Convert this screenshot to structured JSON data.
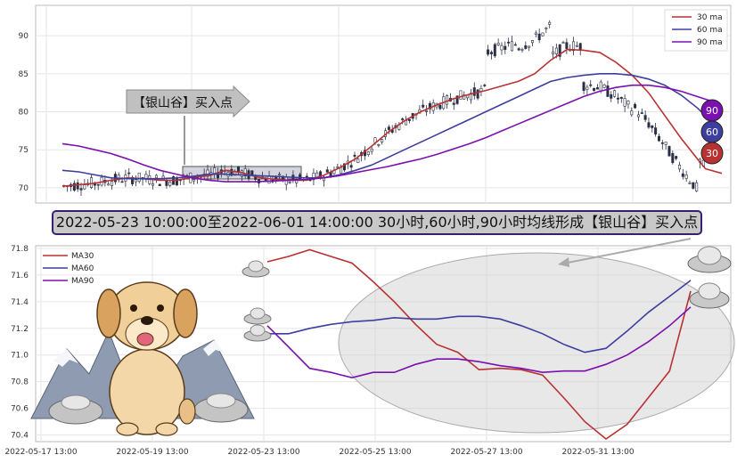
{
  "colors": {
    "ma30": "#b83232",
    "ma60": "#3e3e9e",
    "ma90": "#7a10b0",
    "candle": "#2a2f45",
    "grid": "#e6e6e6",
    "box_fill": "#d4d4dc"
  },
  "banner_text": "2022-05-23 10:00:00至2022-06-01 14:00:00 30小时,60小时,90小时均线形成【银山谷】买入点",
  "chart_data": [
    {
      "type": "line",
      "panel": "top",
      "ylim": [
        68,
        94
      ],
      "yticks": [
        70,
        75,
        80,
        85,
        90
      ],
      "grid": true,
      "legend_position": "top-right",
      "legend": [
        "30 ma",
        "60 ma",
        "90 ma"
      ],
      "annotation": "【银山谷】买入点",
      "end_badges": [
        "90",
        "60",
        "30"
      ],
      "series": [
        {
          "name": "30 ma",
          "x": [
            0,
            20,
            40,
            60,
            80,
            100,
            120,
            140,
            160,
            180,
            200,
            220,
            240,
            260,
            280,
            300,
            320,
            340,
            360,
            380,
            400,
            420,
            440,
            460,
            480,
            500,
            520,
            540,
            560,
            580,
            600,
            620,
            640,
            660,
            680,
            700,
            720,
            740,
            760,
            780,
            790,
            810
          ],
          "y": [
            70.2,
            70.4,
            70.6,
            71.0,
            71.3,
            71.2,
            71.0,
            71.0,
            71.4,
            71.6,
            72.3,
            72.0,
            71.4,
            71.1,
            71.0,
            71.0,
            71.6,
            72.6,
            73.8,
            75.5,
            77.3,
            78.8,
            80.0,
            80.9,
            81.7,
            82.3,
            82.8,
            83.4,
            84.0,
            85.0,
            86.8,
            88.2,
            88.1,
            87.8,
            86.5,
            84.8,
            82.5,
            79.5,
            76.5,
            73.8,
            72.5,
            71.9
          ]
        },
        {
          "name": "60 ma",
          "x": [
            0,
            20,
            40,
            60,
            80,
            100,
            120,
            140,
            160,
            180,
            200,
            220,
            240,
            260,
            280,
            300,
            320,
            340,
            360,
            380,
            400,
            420,
            440,
            460,
            480,
            500,
            520,
            540,
            560,
            580,
            600,
            620,
            640,
            660,
            680,
            700,
            720,
            740,
            760,
            780,
            800
          ],
          "y": [
            72.3,
            72.1,
            71.7,
            71.3,
            71.2,
            71.2,
            71.2,
            71.3,
            71.5,
            71.8,
            71.8,
            71.7,
            71.6,
            71.5,
            71.4,
            71.3,
            71.3,
            71.7,
            72.3,
            73.0,
            74.0,
            75.0,
            76.0,
            77.0,
            78.0,
            79.0,
            80.0,
            81.0,
            82.0,
            83.0,
            84.0,
            84.5,
            84.8,
            85.0,
            85.0,
            84.8,
            84.3,
            83.5,
            82.2,
            80.5,
            78.4
          ]
        },
        {
          "name": "90 ma",
          "x": [
            0,
            20,
            40,
            60,
            80,
            100,
            120,
            140,
            160,
            180,
            200,
            220,
            240,
            260,
            280,
            300,
            320,
            340,
            360,
            380,
            400,
            420,
            440,
            460,
            480,
            500,
            520,
            540,
            560,
            580,
            600,
            620,
            640,
            660,
            680,
            700,
            720,
            740,
            760,
            780,
            800
          ],
          "y": [
            75.8,
            75.5,
            75.0,
            74.5,
            73.8,
            73.0,
            72.3,
            71.8,
            71.3,
            71.0,
            70.8,
            70.8,
            70.8,
            70.9,
            71.0,
            71.1,
            71.3,
            71.6,
            72.0,
            72.4,
            72.8,
            73.3,
            73.8,
            74.4,
            75.1,
            75.8,
            76.6,
            77.5,
            78.4,
            79.3,
            80.2,
            81.1,
            82.0,
            82.7,
            83.2,
            83.5,
            83.5,
            83.2,
            82.7,
            82.0,
            81.3
          ]
        }
      ]
    },
    {
      "type": "line",
      "panel": "bottom",
      "ylim": [
        70.35,
        71.82
      ],
      "yticks": [
        70.4,
        70.6,
        70.8,
        71.0,
        71.2,
        71.4,
        71.6,
        71.8
      ],
      "xtick_labels": [
        "2022-05-17 13:00",
        "2022-05-19 13:00",
        "2022-05-23 13:00",
        "2022-05-25 13:00",
        "2022-05-27 13:00",
        "2022-05-31 13:00"
      ],
      "grid": true,
      "legend_position": "top-left",
      "legend": [
        "MA30",
        "MA60",
        "MA90"
      ],
      "series": [
        {
          "name": "MA30",
          "x": [
            0,
            1,
            2,
            3,
            4,
            5,
            6,
            7,
            8,
            9,
            10,
            11,
            12,
            13,
            14,
            15,
            16,
            17,
            18,
            19,
            20
          ],
          "y": [
            71.7,
            71.74,
            71.79,
            71.74,
            71.69,
            71.55,
            71.4,
            71.23,
            71.08,
            71.02,
            70.89,
            70.9,
            70.89,
            70.85,
            70.68,
            70.5,
            70.37,
            70.48,
            70.68,
            70.88,
            71.48
          ]
        },
        {
          "name": "MA60",
          "x": [
            0,
            1,
            2,
            3,
            4,
            5,
            6,
            7,
            8,
            9,
            10,
            11,
            12,
            13,
            14,
            15,
            16,
            17,
            18,
            19,
            20
          ],
          "y": [
            71.16,
            71.16,
            71.2,
            71.23,
            71.25,
            71.26,
            71.28,
            71.27,
            71.27,
            71.29,
            71.29,
            71.27,
            71.22,
            71.16,
            71.08,
            71.02,
            71.05,
            71.18,
            71.32,
            71.44,
            71.56
          ]
        },
        {
          "name": "MA90",
          "x": [
            0,
            1,
            2,
            3,
            4,
            5,
            6,
            7,
            8,
            9,
            10,
            11,
            12,
            13,
            14,
            15,
            16,
            17,
            18,
            19,
            20
          ],
          "y": [
            71.22,
            71.06,
            70.9,
            70.87,
            70.83,
            70.87,
            70.87,
            70.93,
            70.97,
            70.97,
            70.95,
            70.92,
            70.9,
            70.87,
            70.88,
            70.88,
            70.93,
            71.0,
            71.1,
            71.22,
            71.36
          ]
        }
      ]
    }
  ]
}
